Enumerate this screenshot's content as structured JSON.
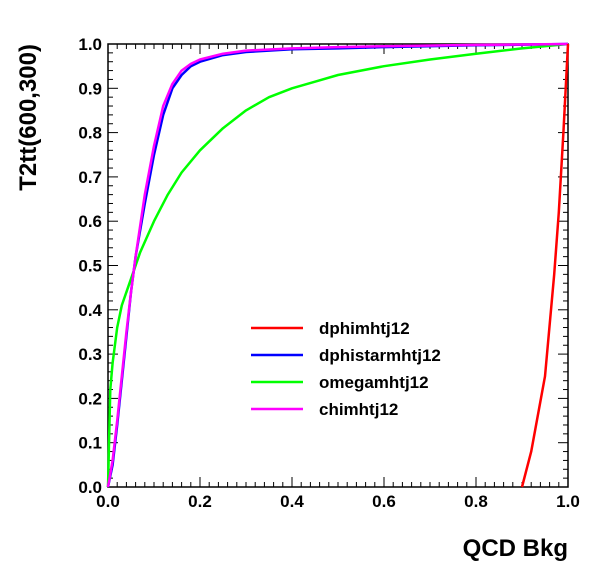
{
  "chart_data": {
    "type": "line",
    "title": "",
    "xlabel": "QCD Bkg",
    "ylabel": "T2tt(600,300)",
    "xlim": [
      0,
      1
    ],
    "ylim": [
      0,
      1
    ],
    "grid": false,
    "legend_position": "center",
    "x_ticks": [
      "0.0",
      "0.2",
      "0.4",
      "0.6",
      "0.8",
      "1.0"
    ],
    "y_ticks": [
      "0.0",
      "0.1",
      "0.2",
      "0.3",
      "0.4",
      "0.5",
      "0.6",
      "0.7",
      "0.8",
      "0.9",
      "1.0"
    ],
    "series": [
      {
        "name": "dphimhtj12",
        "color": "#ff0000",
        "points": [
          [
            0.9,
            0.0
          ],
          [
            0.92,
            0.08
          ],
          [
            0.95,
            0.25
          ],
          [
            0.97,
            0.48
          ],
          [
            0.98,
            0.62
          ],
          [
            0.99,
            0.8
          ],
          [
            1.0,
            1.0
          ]
        ]
      },
      {
        "name": "dphistarmhtj12",
        "color": "#0000ff",
        "points": [
          [
            0.0,
            0.0
          ],
          [
            0.01,
            0.05
          ],
          [
            0.02,
            0.14
          ],
          [
            0.03,
            0.24
          ],
          [
            0.04,
            0.34
          ],
          [
            0.05,
            0.44
          ],
          [
            0.06,
            0.52
          ],
          [
            0.08,
            0.64
          ],
          [
            0.1,
            0.75
          ],
          [
            0.12,
            0.84
          ],
          [
            0.14,
            0.9
          ],
          [
            0.16,
            0.93
          ],
          [
            0.18,
            0.95
          ],
          [
            0.2,
            0.96
          ],
          [
            0.25,
            0.975
          ],
          [
            0.3,
            0.982
          ],
          [
            0.4,
            0.988
          ],
          [
            0.5,
            0.99
          ],
          [
            0.6,
            0.993
          ],
          [
            0.8,
            0.997
          ],
          [
            1.0,
            1.0
          ]
        ]
      },
      {
        "name": "omegamhtj12",
        "color": "#00ff00",
        "points": [
          [
            0.0,
            0.0
          ],
          [
            0.005,
            0.22
          ],
          [
            0.01,
            0.28
          ],
          [
            0.02,
            0.36
          ],
          [
            0.03,
            0.41
          ],
          [
            0.05,
            0.47
          ],
          [
            0.07,
            0.53
          ],
          [
            0.1,
            0.6
          ],
          [
            0.13,
            0.66
          ],
          [
            0.16,
            0.71
          ],
          [
            0.2,
            0.76
          ],
          [
            0.25,
            0.81
          ],
          [
            0.3,
            0.85
          ],
          [
            0.35,
            0.88
          ],
          [
            0.4,
            0.9
          ],
          [
            0.45,
            0.915
          ],
          [
            0.5,
            0.93
          ],
          [
            0.6,
            0.95
          ],
          [
            0.7,
            0.965
          ],
          [
            0.8,
            0.978
          ],
          [
            0.9,
            0.99
          ],
          [
            1.0,
            1.0
          ]
        ]
      },
      {
        "name": "chimhtj12",
        "color": "#ff00ff",
        "points": [
          [
            0.0,
            0.0
          ],
          [
            0.01,
            0.06
          ],
          [
            0.02,
            0.15
          ],
          [
            0.03,
            0.25
          ],
          [
            0.04,
            0.35
          ],
          [
            0.05,
            0.44
          ],
          [
            0.06,
            0.52
          ],
          [
            0.08,
            0.66
          ],
          [
            0.1,
            0.77
          ],
          [
            0.12,
            0.86
          ],
          [
            0.14,
            0.91
          ],
          [
            0.16,
            0.94
          ],
          [
            0.18,
            0.955
          ],
          [
            0.2,
            0.965
          ],
          [
            0.25,
            0.978
          ],
          [
            0.3,
            0.985
          ],
          [
            0.4,
            0.99
          ],
          [
            0.5,
            0.993
          ],
          [
            0.6,
            0.995
          ],
          [
            0.8,
            0.998
          ],
          [
            1.0,
            1.0
          ]
        ]
      }
    ]
  }
}
